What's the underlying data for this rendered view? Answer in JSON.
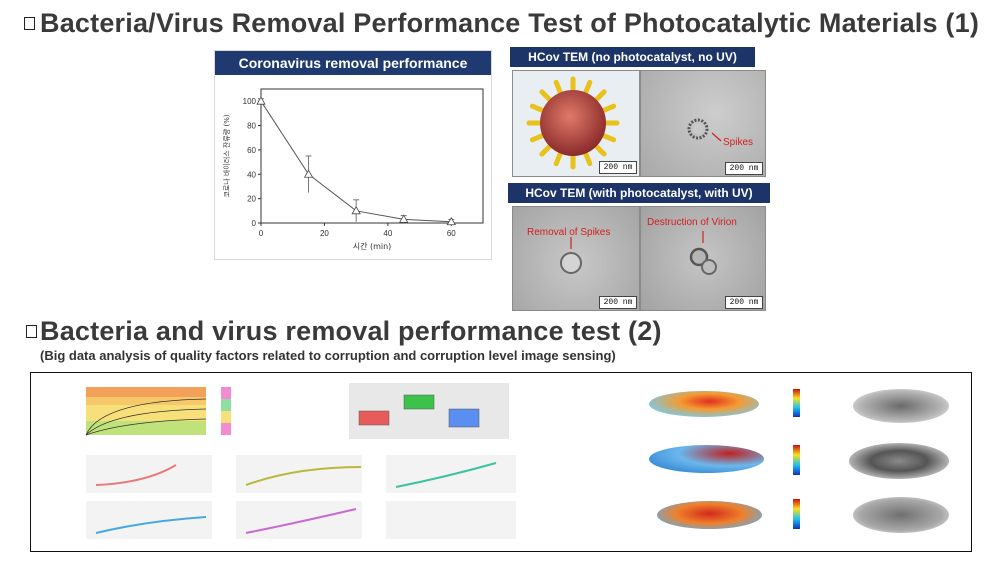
{
  "section1": {
    "title": "Bacteria/Virus Removal Performance Test of Photocatalytic Materials (1)"
  },
  "section2": {
    "title": "Bacteria and virus removal performance test (2)",
    "subtitle": "(Big data analysis of quality factors related to corruption and corruption level image sensing)"
  },
  "chart": {
    "panel_title": "Coronavirus removal performance"
  },
  "chart_data": {
    "type": "line",
    "title": "Coronavirus removal performance",
    "xlabel": "시간 (min)",
    "ylabel": "코로나 바이러스 잔류량 (%)",
    "xlim": [
      0,
      70
    ],
    "ylim": [
      0,
      110
    ],
    "xticks": [
      0,
      20,
      40,
      60
    ],
    "yticks": [
      0,
      20,
      40,
      60,
      80,
      100
    ],
    "x": [
      0,
      15,
      30,
      45,
      60
    ],
    "values": [
      100,
      40,
      10,
      3,
      1
    ],
    "error": [
      2,
      15,
      9,
      3,
      2
    ],
    "marker": "triangle",
    "grid": false
  },
  "tem": {
    "top_header": "HCov TEM (no photocatalyst, no UV)",
    "bottom_header": "HCov TEM (with photocatalyst, with UV)",
    "scale_label": "200 nm",
    "label_spikes": "Spikes",
    "label_removal": "Removal of Spikes",
    "label_destruction": "Destruction of Virion"
  },
  "colors": {
    "header_blue": "#1f3a70",
    "label_red": "#d32020"
  }
}
